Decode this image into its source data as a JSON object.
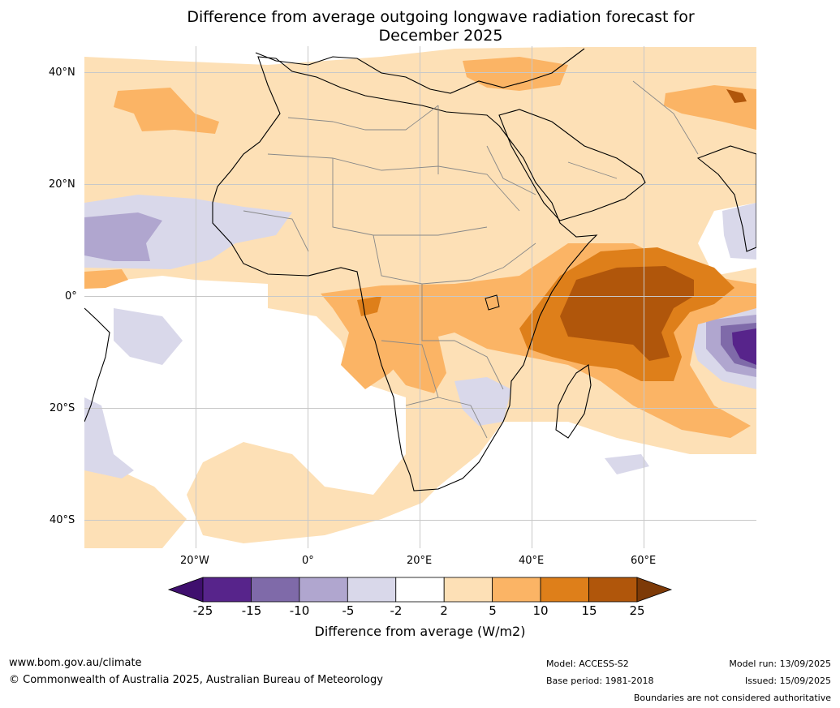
{
  "title_line1": "Difference from average outgoing longwave radiation forecast for",
  "title_line2": "December 2025",
  "map": {
    "lat_labels": [
      "40°N",
      "20°N",
      "0°",
      "20°S",
      "40°S"
    ],
    "lon_labels": [
      "20°W",
      "0°",
      "20°E",
      "40°E",
      "60°E"
    ]
  },
  "colorbar": {
    "ticks": [
      "-25",
      "-15",
      "-10",
      "-5",
      "-2",
      "2",
      "5",
      "10",
      "15",
      "25"
    ],
    "colors": [
      "#3f0f6e",
      "#57248b",
      "#7f6aa9",
      "#b0a6cf",
      "#d9d8ea",
      "#ffffff",
      "#fde0b6",
      "#fbb465",
      "#de7f1a",
      "#b0560b",
      "#7d3a07"
    ],
    "title": "Difference from average (W/m2)"
  },
  "footer": {
    "url": "www.bom.gov.au/climate",
    "copyright": "© Commonwealth of Australia 2025, Australian Bureau of Meteorology",
    "model": "Model: ACCESS-S2",
    "base_period": "Base period: 1981-2018",
    "model_run": "Model run: 13/09/2025",
    "issued": "Issued: 15/09/2025",
    "disclaimer": "Boundaries are not considered authoritative"
  }
}
